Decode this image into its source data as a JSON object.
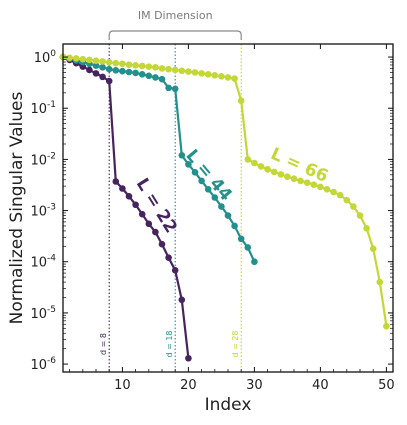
{
  "chart_data": {
    "type": "line",
    "xlabel": "Index",
    "ylabel": "Normalized Singular Values",
    "xlim": [
      1,
      51
    ],
    "ylim": [
      7e-07,
      1.8
    ],
    "y_scale": "log",
    "x_ticks": [
      10,
      20,
      30,
      40,
      50
    ],
    "x_tick_labels": [
      "10",
      "20",
      "30",
      "40",
      "50"
    ],
    "y_ticks": [
      1,
      0.1,
      0.01,
      0.001,
      0.0001,
      1e-05,
      1e-06
    ],
    "y_tick_labels": [
      {
        "base": "10",
        "exp": "0"
      },
      {
        "base": "10",
        "exp": "-1"
      },
      {
        "base": "10",
        "exp": "-2"
      },
      {
        "base": "10",
        "exp": "-3"
      },
      {
        "base": "10",
        "exp": "-4"
      },
      {
        "base": "10",
        "exp": "-5"
      },
      {
        "base": "10",
        "exp": "-6"
      }
    ],
    "grid": false,
    "bracket": {
      "label": "IM Dimension",
      "x_start": 8,
      "x_end": 28
    },
    "vlines": [
      {
        "x": 8,
        "label": "d = 8",
        "color": "#46245f"
      },
      {
        "x": 18,
        "label": "d = 18",
        "color": "#22908c"
      },
      {
        "x": 28,
        "label": "d = 28",
        "color": "#c3d737"
      }
    ],
    "series": [
      {
        "name": "L = 22",
        "color": "#46245f",
        "label_at": {
          "x": 14.5,
          "y": 0.0011
        },
        "label_angle": 58,
        "x": [
          1,
          2,
          3,
          4,
          5,
          6,
          7,
          8,
          9,
          10,
          11,
          12,
          13,
          14,
          15,
          16,
          17,
          18,
          19,
          20
        ],
        "y": [
          1.0,
          0.88,
          0.76,
          0.65,
          0.56,
          0.48,
          0.41,
          0.34,
          0.0037,
          0.0027,
          0.0019,
          0.0013,
          0.00085,
          0.00055,
          0.00038,
          0.00022,
          0.00012,
          6.8e-05,
          1.8e-05,
          1.3e-06
        ]
      },
      {
        "name": "L = 44",
        "color": "#22908c",
        "label_at": {
          "x": 22.5,
          "y": 0.0042
        },
        "label_angle": 50,
        "x": [
          1,
          2,
          3,
          4,
          5,
          6,
          7,
          8,
          9,
          10,
          11,
          12,
          13,
          14,
          15,
          16,
          17,
          18,
          19,
          20,
          21,
          22,
          23,
          24,
          25,
          26,
          27,
          28,
          29,
          30
        ],
        "y": [
          1.0,
          0.93,
          0.86,
          0.8,
          0.74,
          0.68,
          0.63,
          0.58,
          0.55,
          0.53,
          0.51,
          0.49,
          0.46,
          0.43,
          0.4,
          0.37,
          0.25,
          0.24,
          0.012,
          0.008,
          0.0056,
          0.0038,
          0.0026,
          0.0018,
          0.0012,
          0.0008,
          0.0005,
          0.00028,
          0.00019,
          0.0001
        ]
      },
      {
        "name": "L = 66",
        "color": "#c3d737",
        "label_at": {
          "x": 36.5,
          "y": 0.0062
        },
        "label_angle": 24,
        "x": [
          1,
          2,
          3,
          4,
          5,
          6,
          7,
          8,
          9,
          10,
          11,
          12,
          13,
          14,
          15,
          16,
          17,
          18,
          19,
          20,
          21,
          22,
          23,
          24,
          25,
          26,
          27,
          28,
          29,
          30,
          31,
          32,
          33,
          34,
          35,
          36,
          37,
          38,
          39,
          40,
          41,
          42,
          43,
          44,
          45,
          46,
          47,
          48,
          49,
          50
        ],
        "y": [
          1.0,
          0.97,
          0.94,
          0.91,
          0.88,
          0.85,
          0.82,
          0.79,
          0.76,
          0.74,
          0.71,
          0.69,
          0.67,
          0.65,
          0.63,
          0.6,
          0.58,
          0.56,
          0.54,
          0.52,
          0.5,
          0.48,
          0.46,
          0.44,
          0.42,
          0.4,
          0.38,
          0.14,
          0.01,
          0.0085,
          0.0073,
          0.0064,
          0.0057,
          0.0051,
          0.0046,
          0.0042,
          0.0038,
          0.0035,
          0.0032,
          0.0029,
          0.0026,
          0.0023,
          0.002,
          0.0016,
          0.0012,
          0.0008,
          0.00045,
          0.00018,
          4e-05,
          5.5e-06
        ]
      }
    ]
  }
}
